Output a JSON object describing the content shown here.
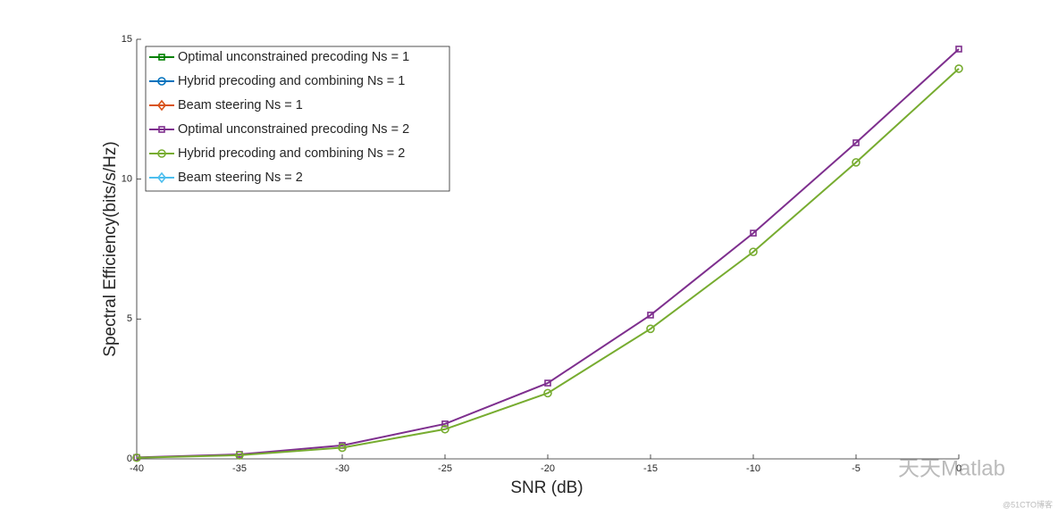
{
  "chart_data": {
    "type": "line",
    "xlabel": "SNR (dB)",
    "ylabel": "Spectral Efficiency(bits/s/Hz)",
    "x": [
      -40,
      -35,
      -30,
      -25,
      -20,
      -15,
      -10,
      -5,
      0
    ],
    "xlim": [
      -40,
      0
    ],
    "xticks": [
      -40,
      -35,
      -30,
      -25,
      -20,
      -15,
      -10,
      -5,
      0
    ],
    "ylim": [
      0,
      15
    ],
    "yticks": [
      0,
      5,
      10,
      15
    ],
    "legend": "upper left",
    "series": [
      {
        "name": "Optimal unconstrained precoding Ns = 1",
        "color": "#008000",
        "marker": "square",
        "values": [
          null,
          null,
          null,
          null,
          null,
          null,
          null,
          null,
          null
        ]
      },
      {
        "name": "Hybrid precoding and combining Ns = 1",
        "color": "#0072BD",
        "marker": "circle",
        "values": [
          null,
          null,
          null,
          null,
          null,
          null,
          null,
          null,
          null
        ]
      },
      {
        "name": "Beam steering Ns = 1",
        "color": "#D95319",
        "marker": "diamond",
        "values": [
          null,
          null,
          null,
          null,
          null,
          null,
          null,
          null,
          null
        ]
      },
      {
        "name": "Optimal unconstrained precoding Ns = 2",
        "color": "#7E2F8E",
        "marker": "square",
        "values": [
          0.05,
          0.16,
          0.48,
          1.25,
          2.71,
          5.14,
          8.07,
          11.3,
          14.65
        ]
      },
      {
        "name": "Hybrid precoding and combining Ns = 2",
        "color": "#77AC30",
        "marker": "circle",
        "values": [
          0.04,
          0.13,
          0.4,
          1.06,
          2.35,
          4.65,
          7.4,
          10.6,
          13.95
        ]
      },
      {
        "name": "Beam steering Ns = 2",
        "color": "#4DBEEE",
        "marker": "diamond",
        "values": [
          null,
          null,
          null,
          null,
          null,
          null,
          null,
          null,
          null
        ]
      }
    ]
  },
  "watermark": {
    "main": "天天Matlab",
    "sub": "@51CTO博客"
  }
}
